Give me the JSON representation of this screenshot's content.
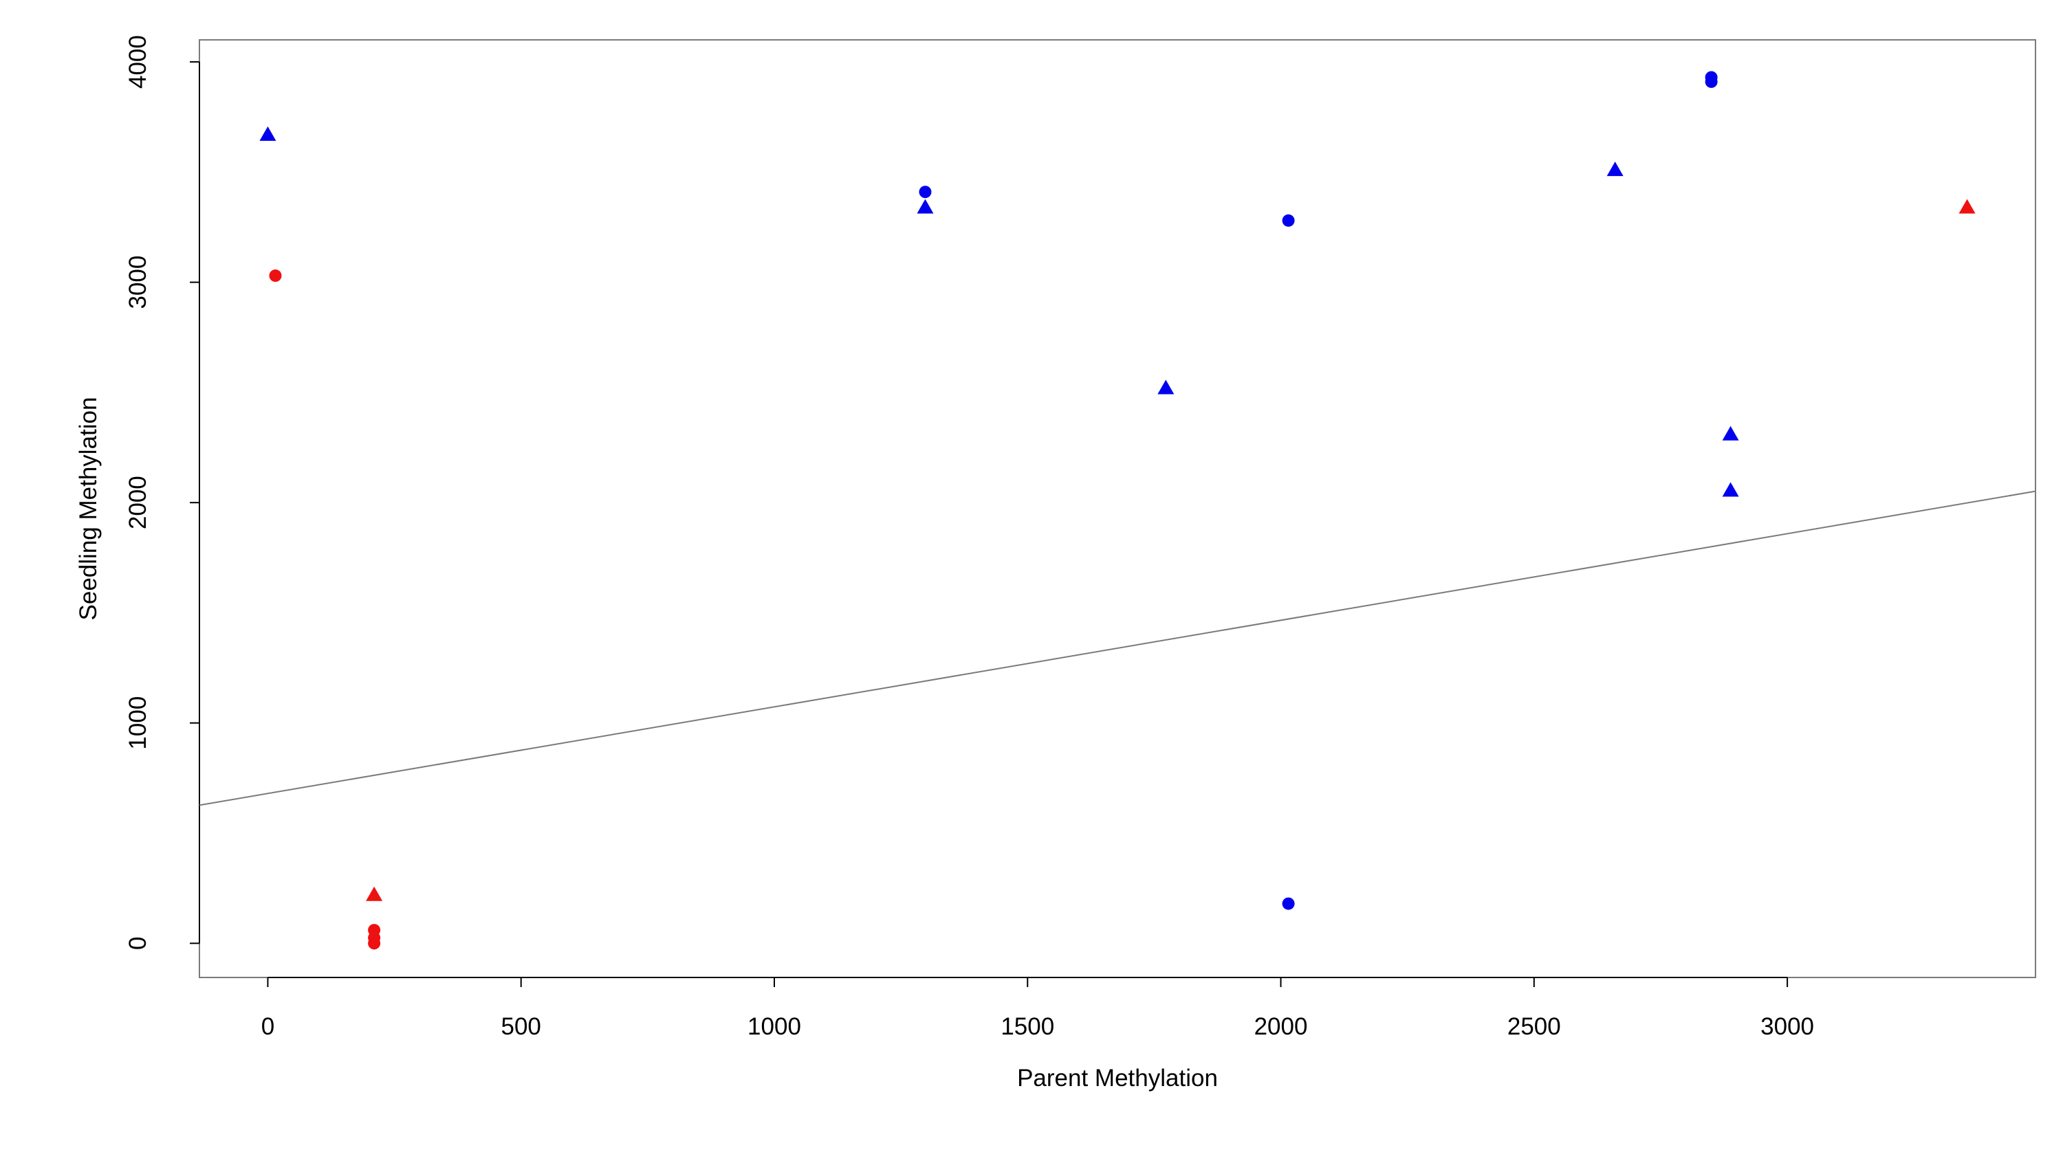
{
  "chart_data": {
    "type": "scatter",
    "title": "",
    "xlabel": "Parent Methylation",
    "ylabel": "Seedling Methylation",
    "xlim": [
      -135,
      3490
    ],
    "ylim": [
      -155,
      4100
    ],
    "xticks": [
      0,
      500,
      1000,
      1500,
      2000,
      2500,
      3000
    ],
    "yticks": [
      0,
      1000,
      2000,
      3000,
      4000
    ],
    "grid": false,
    "legend": "none",
    "colors": {
      "red": "#ee1111",
      "blue": "#0000ee",
      "line": "#7a7a7a",
      "axis": "#000000",
      "frame": "#7a7a7a"
    },
    "fit_line": {
      "intercept": 680,
      "slope": 0.393
    },
    "points": [
      {
        "x": 0,
        "y": 3670,
        "shape": "triangle",
        "color": "blue"
      },
      {
        "x": 15,
        "y": 3030,
        "shape": "circle",
        "color": "red"
      },
      {
        "x": 210,
        "y": 220,
        "shape": "triangle",
        "color": "red"
      },
      {
        "x": 210,
        "y": 60,
        "shape": "circle",
        "color": "red"
      },
      {
        "x": 210,
        "y": 25,
        "shape": "circle",
        "color": "red"
      },
      {
        "x": 210,
        "y": 0,
        "shape": "circle",
        "color": "red"
      },
      {
        "x": 1298,
        "y": 3410,
        "shape": "circle",
        "color": "blue"
      },
      {
        "x": 1298,
        "y": 3340,
        "shape": "triangle",
        "color": "blue"
      },
      {
        "x": 1773,
        "y": 2520,
        "shape": "triangle",
        "color": "blue"
      },
      {
        "x": 2015,
        "y": 3280,
        "shape": "circle",
        "color": "blue"
      },
      {
        "x": 2015,
        "y": 180,
        "shape": "circle",
        "color": "blue"
      },
      {
        "x": 2660,
        "y": 3510,
        "shape": "triangle",
        "color": "blue"
      },
      {
        "x": 2850,
        "y": 3930,
        "shape": "circle",
        "color": "blue"
      },
      {
        "x": 2850,
        "y": 3910,
        "shape": "circle",
        "color": "blue"
      },
      {
        "x": 2888,
        "y": 2310,
        "shape": "triangle",
        "color": "blue"
      },
      {
        "x": 2888,
        "y": 2055,
        "shape": "triangle",
        "color": "blue"
      },
      {
        "x": 3355,
        "y": 3340,
        "shape": "triangle",
        "color": "red"
      }
    ]
  }
}
